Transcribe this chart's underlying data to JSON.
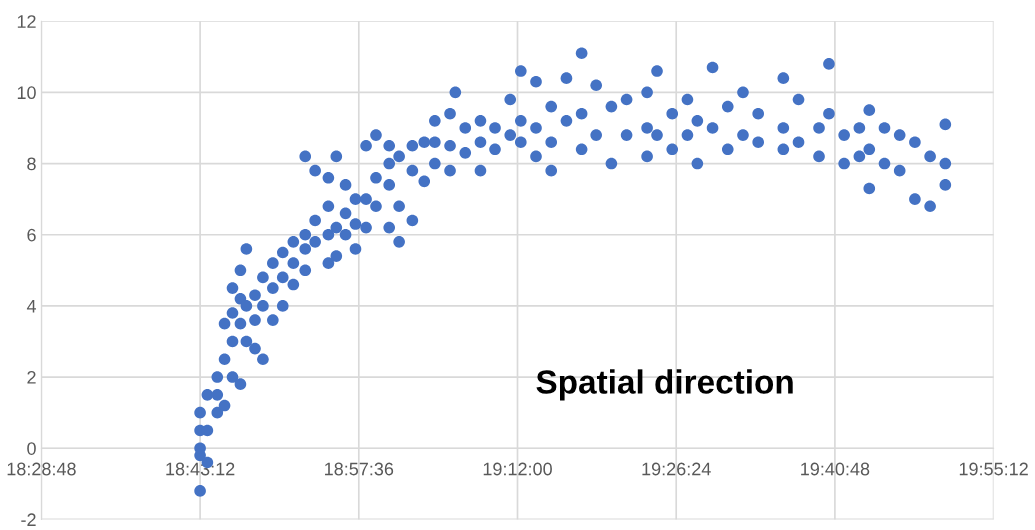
{
  "chart_data": {
    "type": "scatter",
    "annotations": [
      "Spatial direction"
    ],
    "series": [
      {
        "color": "#4472c4",
        "x": [
          18.72,
          18.72,
          18.72,
          18.72,
          18.72,
          18.731,
          18.731,
          18.731,
          18.746,
          18.746,
          18.746,
          18.757,
          18.757,
          18.757,
          18.769,
          18.769,
          18.769,
          18.769,
          18.781,
          18.781,
          18.781,
          18.781,
          18.79,
          18.79,
          18.79,
          18.803,
          18.803,
          18.803,
          18.815,
          18.815,
          18.815,
          18.83,
          18.83,
          18.83,
          18.845,
          18.845,
          18.845,
          18.861,
          18.861,
          18.861,
          18.879,
          18.879,
          18.879,
          18.879,
          18.894,
          18.894,
          18.894,
          18.914,
          18.914,
          18.914,
          18.914,
          18.926,
          18.926,
          18.926,
          18.94,
          18.94,
          18.94,
          18.955,
          18.955,
          18.955,
          18.971,
          18.971,
          18.971,
          18.986,
          18.986,
          18.986,
          19.006,
          19.006,
          19.006,
          19.006,
          19.021,
          19.021,
          19.021,
          19.041,
          19.041,
          19.041,
          19.059,
          19.059,
          19.075,
          19.075,
          19.075,
          19.098,
          19.098,
          19.098,
          19.106,
          19.121,
          19.121,
          19.144,
          19.144,
          19.144,
          19.166,
          19.166,
          19.189,
          19.189,
          19.205,
          19.205,
          19.205,
          19.228,
          19.228,
          19.228,
          19.251,
          19.251,
          19.251,
          19.274,
          19.274,
          19.297,
          19.297,
          19.297,
          19.319,
          19.319,
          19.342,
          19.342,
          19.365,
          19.365,
          19.396,
          19.396,
          19.396,
          19.411,
          19.411,
          19.434,
          19.434,
          19.457,
          19.457,
          19.472,
          19.472,
          19.495,
          19.495,
          19.518,
          19.518,
          19.541,
          19.541,
          19.564,
          19.564,
          19.602,
          19.602,
          19.602,
          19.625,
          19.625,
          19.656,
          19.656,
          19.671,
          19.671,
          19.694,
          19.694,
          19.717,
          19.717,
          19.732,
          19.732,
          19.732,
          19.755,
          19.755,
          19.778,
          19.778,
          19.801,
          19.801,
          19.824,
          19.824,
          19.847,
          19.847,
          19.847
        ],
        "values": [
          -1.2,
          -0.2,
          0,
          0.5,
          1.0,
          0.5,
          -0.4,
          1.5,
          1.0,
          2.0,
          1.5,
          2.5,
          1.2,
          3.5,
          3.0,
          4.5,
          2.0,
          3.8,
          3.5,
          5.0,
          4.2,
          1.8,
          5.6,
          3.0,
          4.0,
          4.3,
          2.8,
          3.6,
          4.0,
          4.8,
          2.5,
          4.5,
          5.2,
          3.6,
          4.8,
          5.5,
          4.0,
          5.2,
          5.8,
          4.6,
          8.2,
          5.6,
          6.0,
          5.0,
          7.8,
          5.8,
          6.4,
          7.6,
          6.0,
          6.8,
          5.2,
          8.2,
          6.2,
          5.4,
          7.4,
          6.0,
          6.6,
          6.3,
          5.6,
          7.0,
          8.5,
          7.0,
          6.2,
          8.8,
          7.6,
          6.8,
          8.5,
          7.4,
          6.2,
          8.0,
          8.2,
          6.8,
          5.8,
          7.8,
          8.5,
          6.4,
          8.6,
          7.5,
          9.2,
          8.0,
          8.6,
          9.4,
          8.5,
          7.8,
          10.0,
          9.0,
          8.3,
          9.2,
          8.6,
          7.8,
          9.0,
          8.4,
          9.8,
          8.8,
          10.6,
          9.2,
          8.6,
          10.3,
          9.0,
          8.2,
          9.6,
          8.6,
          7.8,
          10.4,
          9.2,
          11.1,
          9.4,
          8.4,
          10.2,
          8.8,
          9.6,
          8.0,
          9.8,
          8.8,
          10.0,
          9.0,
          8.2,
          10.6,
          8.8,
          9.4,
          8.4,
          9.8,
          8.8,
          8.0,
          9.2,
          10.7,
          9.0,
          9.6,
          8.4,
          10.0,
          8.8,
          9.4,
          8.6,
          10.4,
          9.0,
          8.4,
          9.8,
          8.6,
          9.0,
          8.2,
          10.8,
          9.4,
          8.8,
          8.0,
          9.0,
          8.2,
          9.5,
          7.3,
          8.4,
          9.0,
          8.0,
          8.8,
          7.8,
          8.6,
          7.0,
          8.2,
          6.8,
          9.1,
          7.4,
          8.0
        ]
      }
    ],
    "xlim": [
      18.48,
      19.92
    ],
    "xticks": [
      {
        "value": 18.48,
        "label": "18:28:48"
      },
      {
        "value": 18.72,
        "label": "18:43:12"
      },
      {
        "value": 18.96,
        "label": "18:57:36"
      },
      {
        "value": 19.2,
        "label": "19:12:00"
      },
      {
        "value": 19.44,
        "label": "19:26:24"
      },
      {
        "value": 19.68,
        "label": "19:40:48"
      },
      {
        "value": 19.92,
        "label": "19:55:12"
      }
    ],
    "ylim": [
      -2,
      12
    ],
    "yticks": [
      -2,
      0,
      2,
      4,
      6,
      8,
      10,
      12
    ],
    "grid": true,
    "marker": "circle"
  }
}
